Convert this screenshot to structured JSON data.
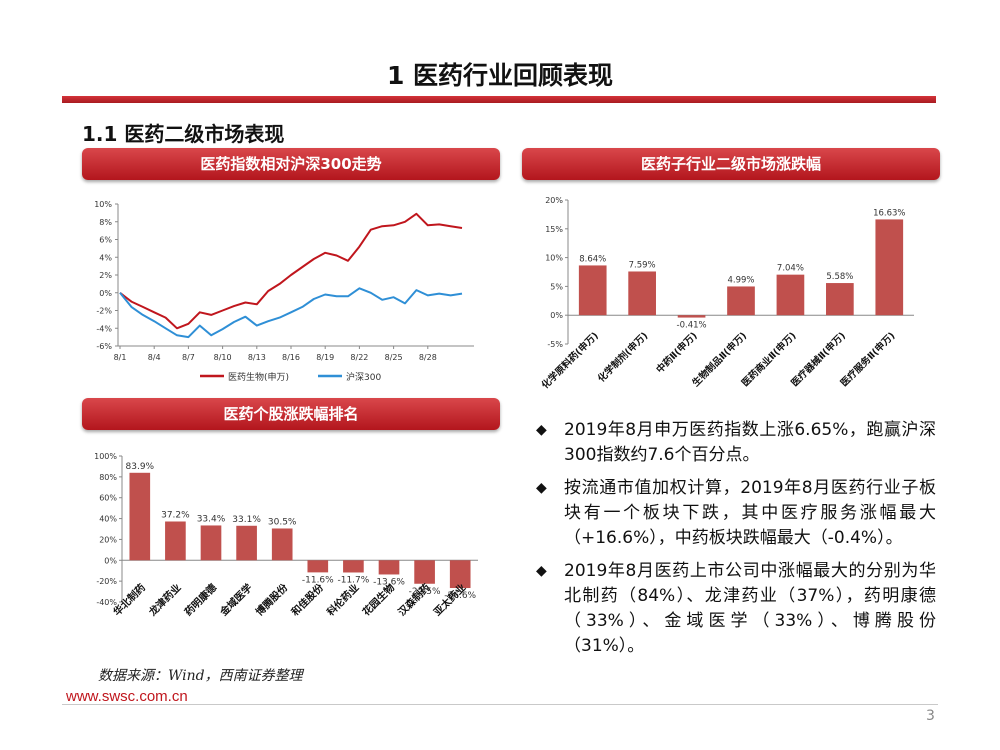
{
  "page": {
    "title": "1 医药行业回顾表现",
    "subtitle": "1.1 医药二级市场表现",
    "source": "数据来源：Wind，西南证券整理",
    "url": "www.swsc.com.cn",
    "page_number": "3"
  },
  "panels": {
    "line_title": "医药指数相对沪深300走势",
    "sector_title": "医药子行业二级市场涨跌幅",
    "stock_title": "医药个股涨跌幅排名"
  },
  "colors": {
    "accent": "#c0161d",
    "bar": "#c0504d",
    "blue": "#2f8fd6",
    "red": "#c0161d"
  },
  "bullets": [
    "2019年8月申万医药指数上涨6.65%，跑赢沪深300指数约7.6个百分点。",
    "按流通市值加权计算，2019年8月医药行业子板块有一个板块下跌，其中医疗服务涨幅最大（+16.6%），中药板块跌幅最大（-0.4%）。",
    "2019年8月医药上市公司中涨幅最大的分别为华北制药（84%）、龙津药业（37%），药明康德（33%）、金域医学（33%）、博腾股份（31%）。"
  ],
  "chart_data": [
    {
      "type": "line",
      "title": "医药指数相对沪深300走势",
      "x_tick_labels": [
        "8/1",
        "8/4",
        "8/7",
        "8/10",
        "8/13",
        "8/16",
        "8/19",
        "8/22",
        "8/25",
        "8/28"
      ],
      "ylim": [
        -6,
        10
      ],
      "y_tick_labels": [
        "10%",
        "8%",
        "6%",
        "4%",
        "2%",
        "0%",
        "-2%",
        "-4%",
        "-6%"
      ],
      "series": [
        {
          "name": "医药生物(申万)",
          "color": "#c0161d",
          "values": [
            0,
            -1.0,
            -1.6,
            -2.2,
            -2.8,
            -4.0,
            -3.5,
            -2.2,
            -2.5,
            -2.0,
            -1.5,
            -1.1,
            -1.3,
            0.2,
            1.0,
            2.0,
            2.9,
            3.8,
            4.5,
            4.2,
            3.6,
            5.2,
            7.1,
            7.5,
            7.6,
            8.0,
            8.9,
            7.6,
            7.7,
            7.5,
            7.3
          ]
        },
        {
          "name": "沪深300",
          "color": "#2f8fd6",
          "values": [
            0,
            -1.6,
            -2.5,
            -3.2,
            -4.0,
            -4.8,
            -5.0,
            -3.7,
            -4.8,
            -4.1,
            -3.3,
            -2.7,
            -3.7,
            -3.2,
            -2.8,
            -2.2,
            -1.6,
            -0.7,
            -0.2,
            -0.4,
            -0.4,
            0.5,
            0.0,
            -0.8,
            -0.5,
            -1.2,
            0.3,
            -0.3,
            -0.1,
            -0.3,
            -0.1
          ]
        }
      ]
    },
    {
      "type": "bar",
      "title": "医药子行业二级市场涨跌幅",
      "categories": [
        "化学原料药(申万)",
        "化学制剂(申万)",
        "中药Ⅱ(申万)",
        "生物制品Ⅱ(申万)",
        "医药商业Ⅱ(申万)",
        "医疗器械Ⅱ(申万)",
        "医疗服务Ⅱ(申万)"
      ],
      "values": [
        8.64,
        7.59,
        -0.41,
        4.99,
        7.04,
        5.58,
        16.63
      ],
      "data_labels": [
        "8.64%",
        "7.59%",
        "-0.41%",
        "4.99%",
        "7.04%",
        "5.58%",
        "16.63%"
      ],
      "ylim": [
        -5,
        20
      ],
      "y_tick_labels": [
        "20%",
        "15%",
        "10%",
        "5%",
        "0%",
        "-5%"
      ]
    },
    {
      "type": "bar",
      "title": "医药个股涨跌幅排名",
      "categories": [
        "华北制药",
        "龙津药业",
        "药明康德",
        "金域医学",
        "博腾股份",
        "和佳股份",
        "科伦药业",
        "花园生物",
        "汉森制药",
        "亚太药业"
      ],
      "values": [
        83.9,
        37.2,
        33.4,
        33.1,
        30.5,
        -11.6,
        -11.7,
        -13.6,
        -22.5,
        -26.6
      ],
      "data_labels": [
        "83.9%",
        "37.2%",
        "33.4%",
        "33.1%",
        "30.5%",
        "-11.6%",
        "-11.7%",
        "-13.6%",
        "-22.5%",
        "-26.6%"
      ],
      "ylim": [
        -40,
        100
      ],
      "y_tick_labels": [
        "100%",
        "80%",
        "60%",
        "40%",
        "20%",
        "0%",
        "-20%",
        "-40%"
      ]
    }
  ]
}
